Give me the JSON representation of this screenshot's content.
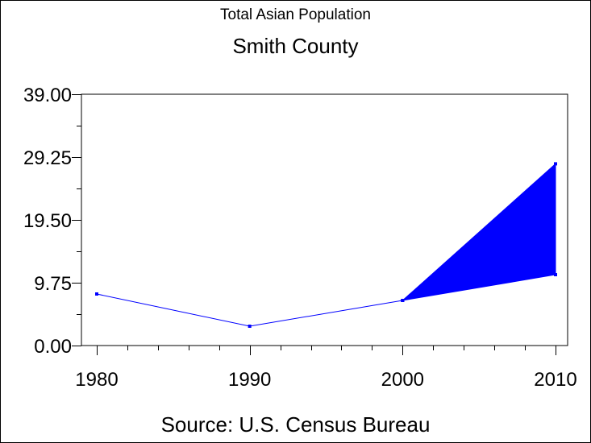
{
  "chart_data": {
    "type": "line",
    "title": "Total Asian Population",
    "subtitle": "Smith County",
    "footnote": "Source: U.S. Census Bureau",
    "xlabel": "",
    "ylabel": "",
    "x": [
      1980,
      1990,
      2000,
      2010
    ],
    "series": [
      {
        "name": "Total Asian Population",
        "values": [
          8,
          3,
          7,
          null
        ]
      }
    ],
    "projection_band": {
      "x": [
        2000,
        2010
      ],
      "low": [
        7,
        11
      ],
      "high": [
        7,
        28.2
      ]
    },
    "xlim": [
      1980,
      2010
    ],
    "ylim": [
      0,
      39
    ],
    "yticks": [
      "0.00",
      "9.75",
      "19.50",
      "29.25",
      "39.00"
    ],
    "xticks": [
      "1980",
      "1990",
      "2000",
      "2010"
    ],
    "color": "#0000ff",
    "grid": false
  }
}
